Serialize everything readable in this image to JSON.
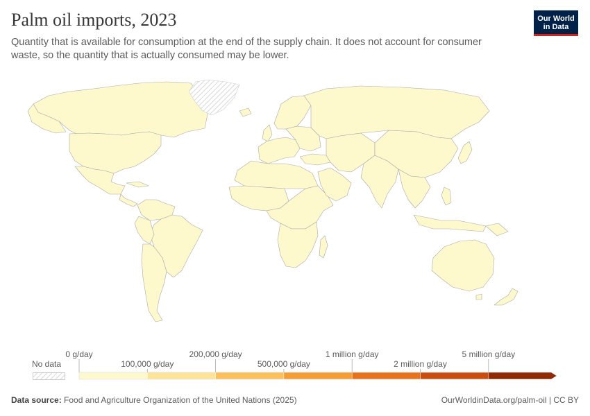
{
  "title": "Palm oil imports, 2023",
  "subtitle": "Quantity that is available for consumption at the end of the supply chain. It does not account for consumer waste, so the quantity that is actually consumed may be lower.",
  "logo": {
    "line1": "Our World",
    "line2": "in Data"
  },
  "legend": {
    "no_data_label": "No data",
    "upper_ticks": [
      "0 g/day",
      "200,000 g/day",
      "1 million g/day",
      "5 million g/day"
    ],
    "lower_ticks": [
      "100,000 g/day",
      "500,000 g/day",
      "2 million g/day"
    ],
    "bins": [
      {
        "from": "0 g/day",
        "to": "100,000 g/day",
        "color": "#fef9cd"
      },
      {
        "from": "100,000 g/day",
        "to": "200,000 g/day",
        "color": "#fde498"
      },
      {
        "from": "200,000 g/day",
        "to": "500,000 g/day",
        "color": "#fbc05b"
      },
      {
        "from": "500,000 g/day",
        "to": "1 million g/day",
        "color": "#f69c34"
      },
      {
        "from": "1 million g/day",
        "to": "2 million g/day",
        "color": "#e6731c"
      },
      {
        "from": "2 million g/day",
        "to": "5 million g/day",
        "color": "#c84d0f"
      },
      {
        "from": "5 million g/day",
        "to": "",
        "color": "#8f2b05"
      }
    ]
  },
  "map_colors": {
    "land": "#fef9cd",
    "border": "#a8a8a8",
    "no_data_hatch": "#cfcfcf"
  },
  "footer": {
    "source_label": "Data source:",
    "source_text": "Food and Agriculture Organization of the United Nations (2025)",
    "url_text": "OurWorldinData.org/palm-oil | CC BY"
  }
}
